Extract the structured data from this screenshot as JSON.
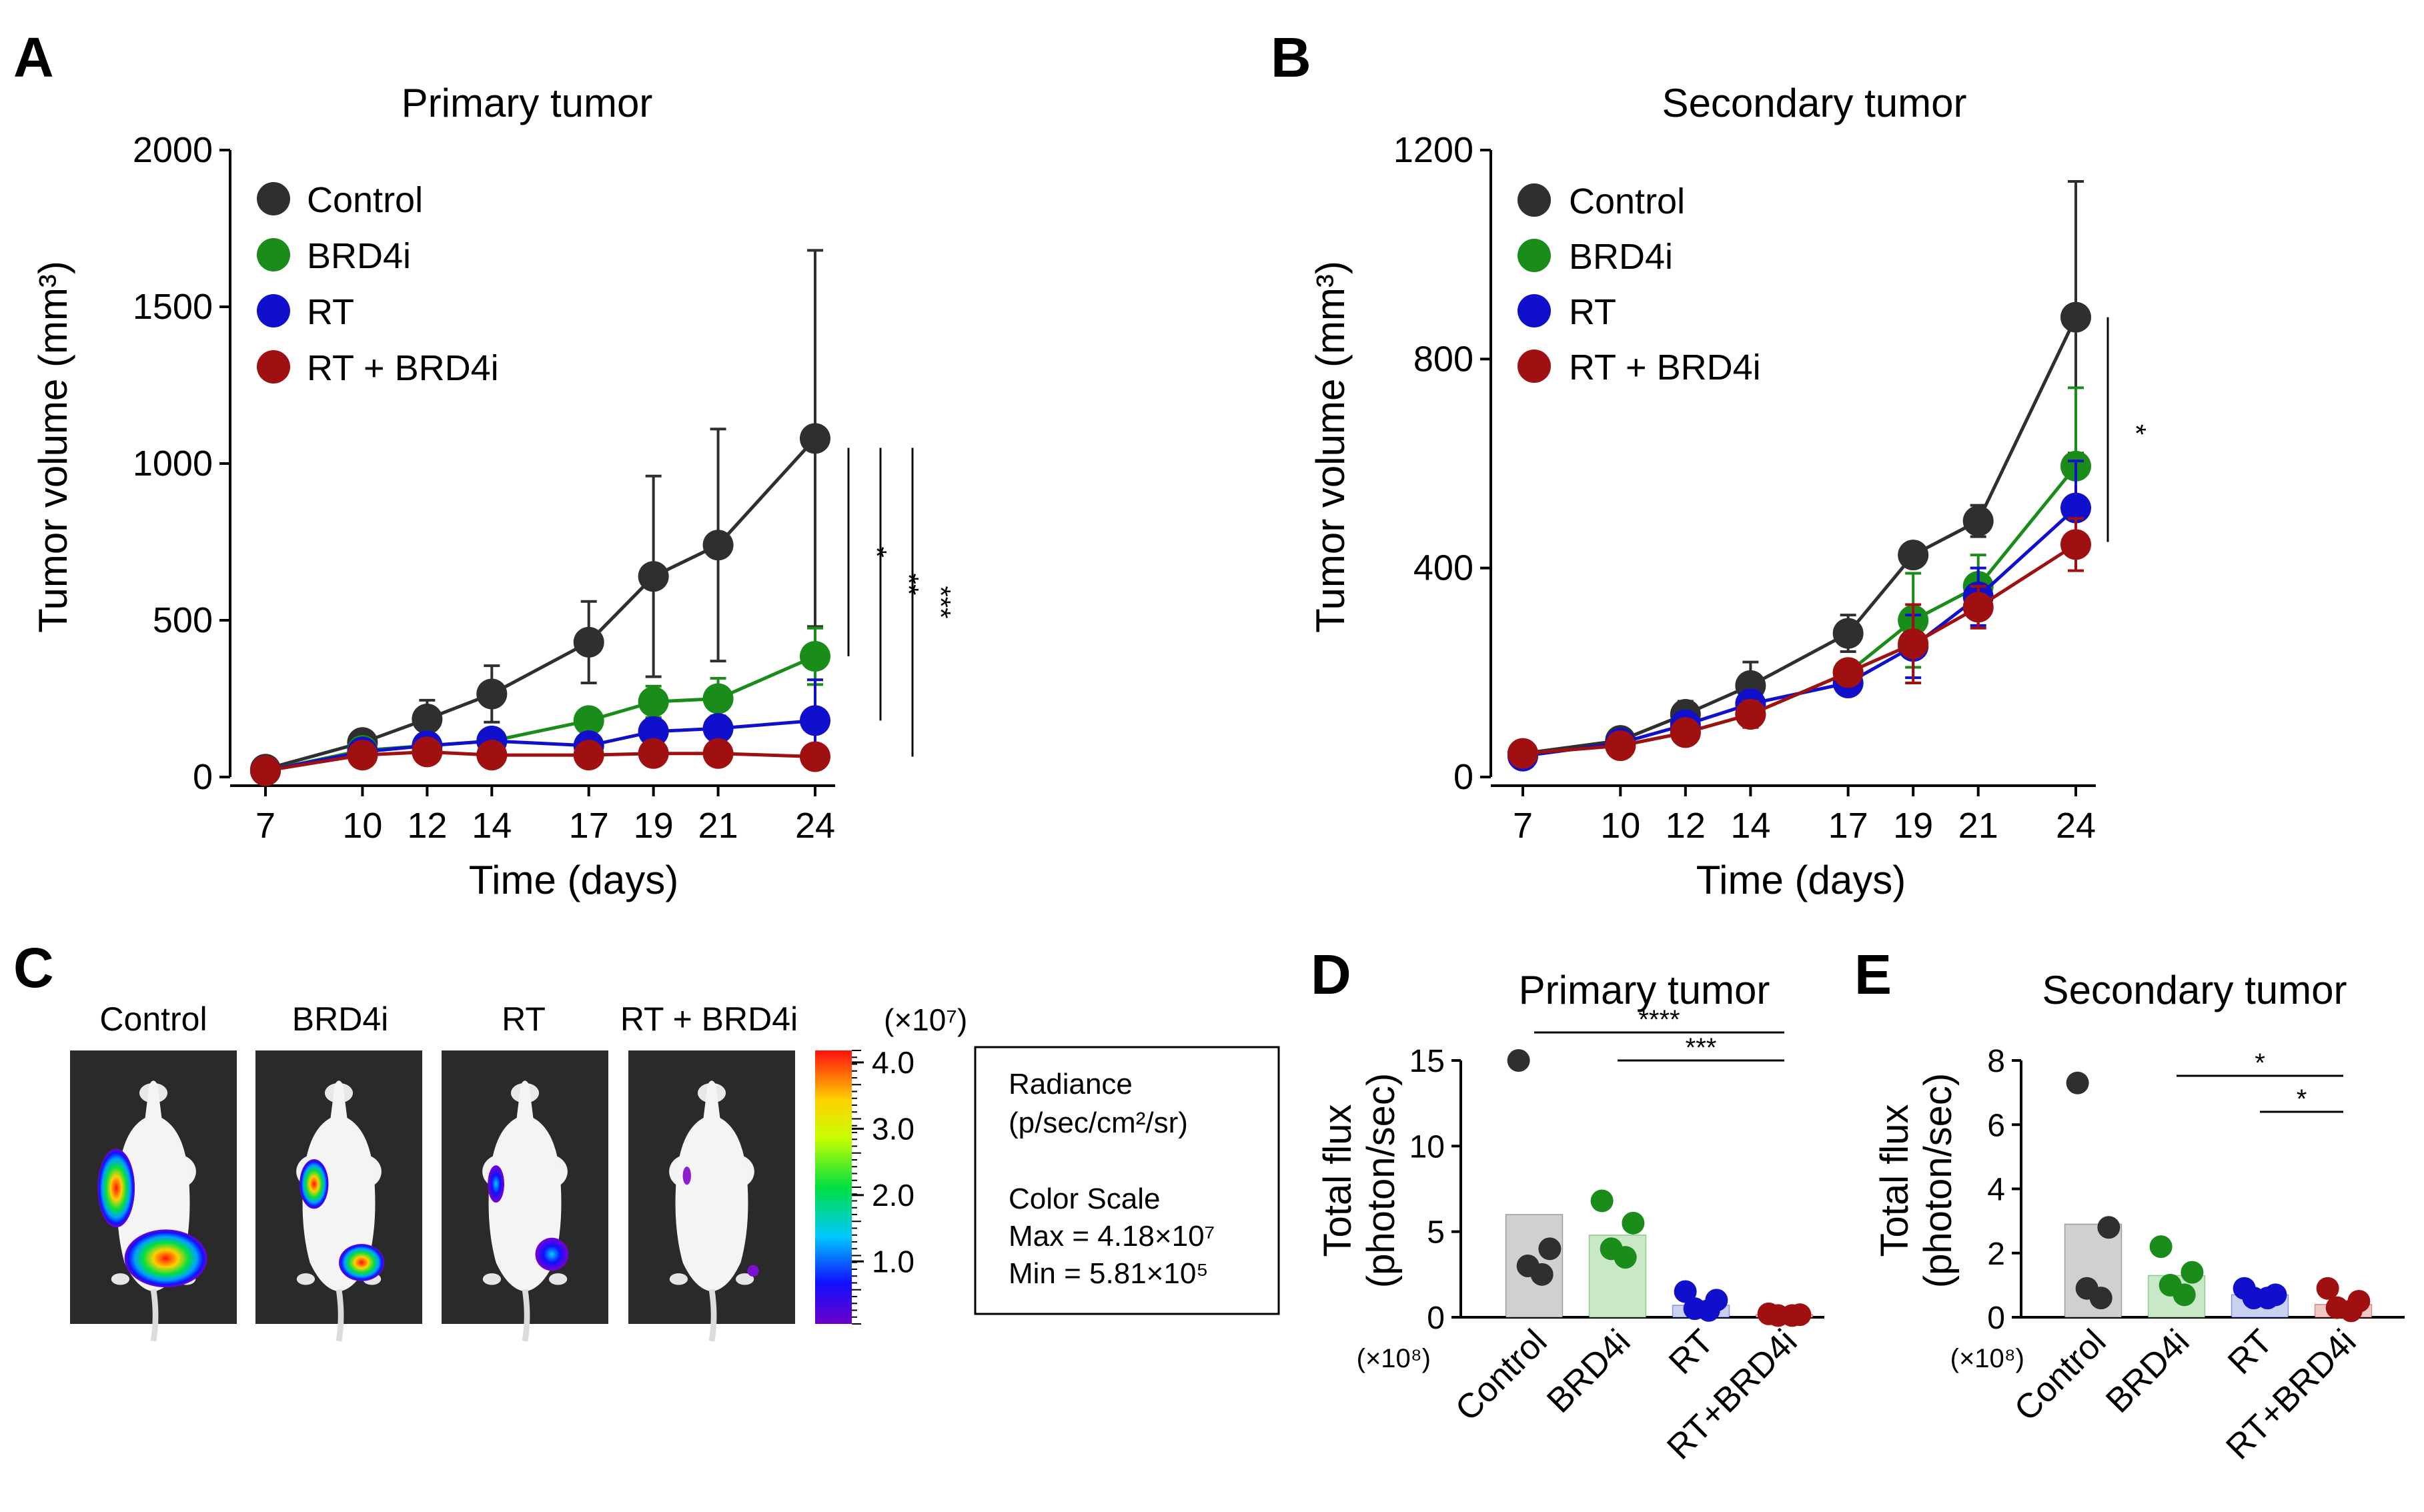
{
  "panel_labels": {
    "a": "A",
    "b": "B",
    "c": "C",
    "d": "D",
    "e": "E"
  },
  "legend": {
    "title": "",
    "items": [
      {
        "label": "Control",
        "color": "#2f2f2f"
      },
      {
        "label": "BRD4i",
        "color": "#1a8c1a"
      },
      {
        "label": "RT",
        "color": "#1010cc"
      },
      {
        "label": "RT + BRD4i",
        "color": "#a01010"
      }
    ]
  },
  "panel_c": {
    "labels": [
      "Control",
      "BRD4i",
      "RT",
      "RT + BRD4i"
    ],
    "colorbar": {
      "unit": "(×10⁷)",
      "ticks": [
        "4.0",
        "3.0",
        "2.0",
        "1.0"
      ],
      "tick_values": [
        4.0,
        3.0,
        2.0,
        1.0
      ],
      "max_value": 4.18,
      "min_value": 0.0581
    },
    "info": {
      "line1": "Radiance",
      "line2": "(p/sec/cm²/sr)",
      "line3": "Color Scale",
      "line4": "Max = 4.18×10⁷",
      "line5": "Min = 5.81×10⁵"
    }
  },
  "chart_data": [
    {
      "id": "A",
      "type": "line",
      "title": "Primary tumor",
      "xlabel": "Time (days)",
      "ylabel": "Tumor volume (mm³)",
      "x": [
        7,
        10,
        12,
        14,
        17,
        19,
        21,
        24
      ],
      "x_tick_labels": [
        "7",
        "10",
        "12",
        "14",
        "17",
        "19",
        "21",
        "24"
      ],
      "ylim": [
        0,
        2000
      ],
      "y_ticks": [
        0,
        500,
        1000,
        1500,
        2000
      ],
      "y_tick_labels": [
        "0",
        "500",
        "1000",
        "1500",
        "2000"
      ],
      "series": [
        {
          "name": "Control",
          "color": "#2f2f2f",
          "values": [
            25,
            110,
            185,
            265,
            430,
            640,
            740,
            1080
          ],
          "errors": [
            10,
            30,
            60,
            90,
            130,
            320,
            370,
            600
          ]
        },
        {
          "name": "BRD4i",
          "color": "#1a8c1a",
          "values": [
            20,
            85,
            100,
            115,
            180,
            240,
            250,
            385
          ],
          "errors": [
            8,
            20,
            25,
            30,
            30,
            50,
            65,
            90
          ]
        },
        {
          "name": "RT",
          "color": "#1010cc",
          "values": [
            20,
            80,
            100,
            115,
            100,
            145,
            155,
            180
          ],
          "errors": [
            8,
            20,
            25,
            30,
            30,
            40,
            40,
            130
          ]
        },
        {
          "name": "RT + BRD4i",
          "color": "#a01010",
          "values": [
            20,
            70,
            80,
            70,
            70,
            75,
            75,
            65
          ],
          "errors": [
            8,
            15,
            20,
            20,
            15,
            15,
            30,
            15
          ]
        }
      ],
      "significance": [
        {
          "label": "*",
          "from": 385,
          "to": 1050
        },
        {
          "label": "**",
          "from": 180,
          "to": 1050
        },
        {
          "label": "***",
          "from": 65,
          "to": 1050
        }
      ]
    },
    {
      "id": "B",
      "type": "line",
      "title": "Secondary tumor",
      "xlabel": "Time (days)",
      "ylabel": "Tumor volume (mm³)",
      "x": [
        7,
        10,
        12,
        14,
        17,
        19,
        21,
        24
      ],
      "x_tick_labels": [
        "7",
        "10",
        "12",
        "14",
        "17",
        "19",
        "21",
        "24"
      ],
      "ylim": [
        0,
        1200
      ],
      "y_ticks": [
        0,
        400,
        800,
        1200
      ],
      "y_tick_labels": [
        "0",
        "400",
        "800",
        "1200"
      ],
      "series": [
        {
          "name": "Control",
          "color": "#2f2f2f",
          "values": [
            45,
            70,
            120,
            175,
            275,
            425,
            490,
            880
          ],
          "errors": [
            5,
            10,
            25,
            45,
            35,
            20,
            30,
            260
          ]
        },
        {
          "name": "BRD4i",
          "color": "#1a8c1a",
          "values": [
            45,
            60,
            85,
            120,
            200,
            300,
            365,
            595
          ],
          "errors": [
            5,
            8,
            20,
            25,
            20,
            90,
            60,
            150
          ]
        },
        {
          "name": "RT",
          "color": "#1010cc",
          "values": [
            40,
            65,
            100,
            140,
            180,
            250,
            345,
            515
          ],
          "errors": [
            5,
            8,
            20,
            25,
            20,
            60,
            55,
            90
          ]
        },
        {
          "name": "RT + BRD4i",
          "color": "#a01010",
          "values": [
            45,
            60,
            85,
            120,
            200,
            255,
            325,
            445
          ],
          "errors": [
            5,
            8,
            20,
            25,
            20,
            75,
            40,
            50
          ]
        }
      ],
      "significance": [
        {
          "label": "*",
          "from": 450,
          "to": 880
        }
      ]
    },
    {
      "id": "D",
      "type": "bar",
      "title": "Primary tumor",
      "ylabel_line1": "Total flux",
      "ylabel_line2": "(photon/sec)",
      "y_multiplier": "(×10⁸)",
      "categories": [
        "Control",
        "BRD4i",
        "RT",
        "RT+BRD4i"
      ],
      "colors": [
        "#2f2f2f",
        "#1a8c1a",
        "#1010cc",
        "#a01010"
      ],
      "bar_fills": [
        "#d0d0d0",
        "#c8e8c8",
        "#c8d2f0",
        "#f0c8c8"
      ],
      "values": [
        6.0,
        4.8,
        0.7,
        0.15
      ],
      "points": [
        [
          15.0,
          4.0,
          3.0,
          2.5
        ],
        [
          6.8,
          5.5,
          4.0,
          3.5
        ],
        [
          1.5,
          1.0,
          0.5,
          0.4
        ],
        [
          0.2,
          0.15,
          0.1,
          0.1
        ]
      ],
      "ylim": [
        0,
        15
      ],
      "y_ticks": [
        0,
        5,
        10,
        15
      ],
      "y_tick_labels": [
        "0",
        "5",
        "10",
        "15"
      ],
      "significance": [
        {
          "label": "****",
          "from": 0,
          "to": 3
        },
        {
          "label": "***",
          "from": 1,
          "to": 3
        }
      ]
    },
    {
      "id": "E",
      "type": "bar",
      "title": "Secondary tumor",
      "ylabel_line1": "Total flux",
      "ylabel_line2": "(photon/sec)",
      "y_multiplier": "(×10⁸)",
      "categories": [
        "Control",
        "BRD4i",
        "RT",
        "RT+BRD4i"
      ],
      "colors": [
        "#2f2f2f",
        "#1a8c1a",
        "#1010cc",
        "#a01010"
      ],
      "bar_fills": [
        "#d0d0d0",
        "#c8e8c8",
        "#c8d2f0",
        "#f0c8c8"
      ],
      "values": [
        2.9,
        1.3,
        0.7,
        0.4
      ],
      "points": [
        [
          7.3,
          2.8,
          0.9,
          0.6
        ],
        [
          2.2,
          1.4,
          1.0,
          0.7
        ],
        [
          0.9,
          0.7,
          0.6,
          0.6
        ],
        [
          0.9,
          0.5,
          0.3,
          0.2
        ]
      ],
      "ylim": [
        0,
        8
      ],
      "y_ticks": [
        0,
        2,
        4,
        6,
        8
      ],
      "y_tick_labels": [
        "0",
        "2",
        "4",
        "6",
        "8"
      ],
      "significance": [
        {
          "label": "*",
          "from": 1,
          "to": 3
        },
        {
          "label": "*",
          "from": 2,
          "to": 3
        }
      ]
    }
  ]
}
